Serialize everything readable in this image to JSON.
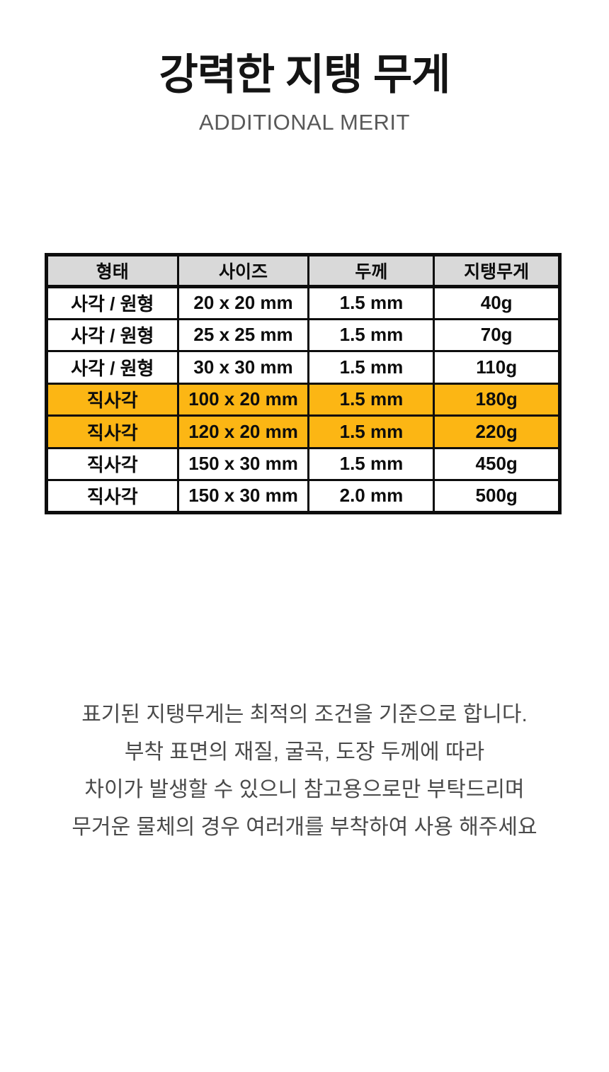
{
  "header": {
    "title": "강력한 지탱 무게",
    "subtitle": "ADDITIONAL MERIT"
  },
  "table": {
    "columns": [
      "형태",
      "사이즈",
      "두께",
      "지탱무게"
    ],
    "rows": [
      {
        "cells": [
          "사각 / 원형",
          "20 x 20 mm",
          "1.5 mm",
          "40g"
        ],
        "highlight": false
      },
      {
        "cells": [
          "사각 / 원형",
          "25 x 25 mm",
          "1.5 mm",
          "70g"
        ],
        "highlight": false
      },
      {
        "cells": [
          "사각 / 원형",
          "30 x 30 mm",
          "1.5 mm",
          "110g"
        ],
        "highlight": false
      },
      {
        "cells": [
          "직사각",
          "100 x 20 mm",
          "1.5 mm",
          "180g"
        ],
        "highlight": true
      },
      {
        "cells": [
          "직사각",
          "120 x 20 mm",
          "1.5 mm",
          "220g"
        ],
        "highlight": true
      },
      {
        "cells": [
          "직사각",
          "150 x 30 mm",
          "1.5 mm",
          "450g"
        ],
        "highlight": false
      },
      {
        "cells": [
          "직사각",
          "150 x 30 mm",
          "2.0 mm",
          "500g"
        ],
        "highlight": false
      }
    ],
    "colors": {
      "highlight_bg": "#fcb614",
      "header_bg": "#d9d9d9",
      "border": "#0d0d0d"
    }
  },
  "notes": {
    "lines": [
      "표기된 지탱무게는 최적의 조건을 기준으로 합니다.",
      "부착 표면의 재질, 굴곡, 도장 두께에 따라",
      "차이가 발생할 수 있으니 참고용으로만 부탁드리며",
      "무거운 물체의 경우 여러개를 부착하여 사용 해주세요"
    ]
  }
}
